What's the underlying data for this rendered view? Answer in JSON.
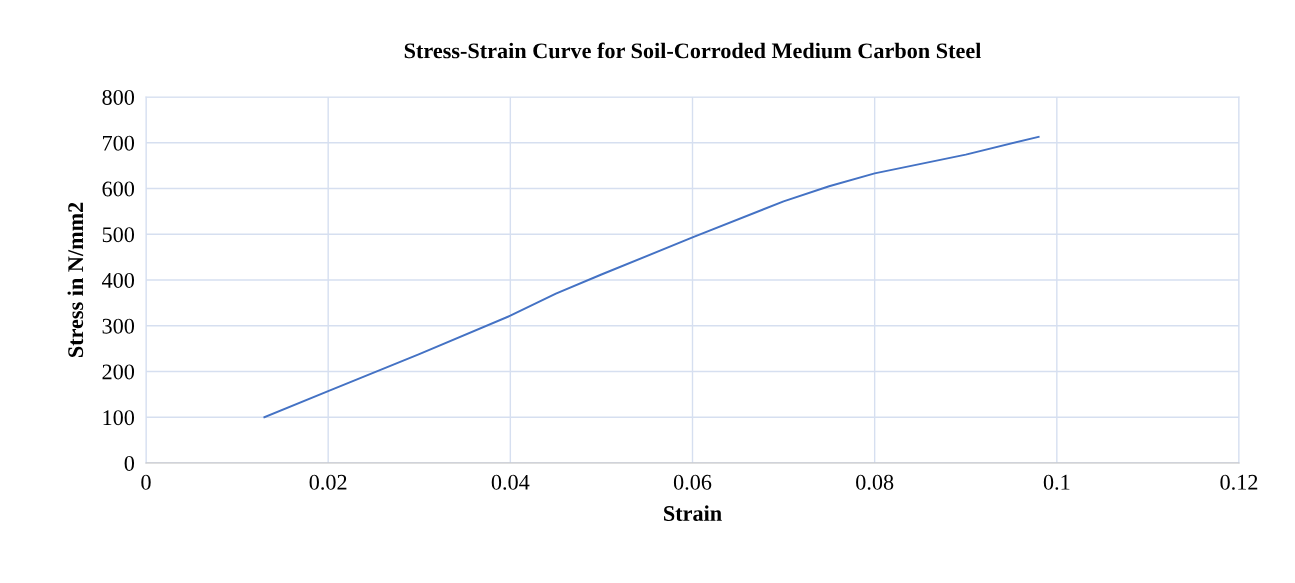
{
  "chart_data": {
    "type": "line",
    "title": "Stress-Strain Curve for Soil-Corroded Medium Carbon Steel",
    "xlabel": "Strain",
    "ylabel": "Stress in N/mm2",
    "x": [
      0.013,
      0.02,
      0.03,
      0.04,
      0.045,
      0.05,
      0.06,
      0.07,
      0.075,
      0.08,
      0.09,
      0.098
    ],
    "series": [
      {
        "color": "#4472c4",
        "values": [
          100,
          157,
          238,
          322,
          370,
          412,
          493,
          572,
          605,
          633,
          674,
          713
        ]
      }
    ],
    "xlim": [
      0,
      0.12
    ],
    "xticks": [
      0,
      0.02,
      0.04,
      0.06,
      0.08,
      0.1,
      0.12
    ],
    "ylim": [
      0,
      800
    ],
    "yticks": [
      0,
      100,
      200,
      300,
      400,
      500,
      600,
      700,
      800
    ],
    "grid": true,
    "legend": false,
    "marker": "none",
    "line_style": "solid"
  }
}
